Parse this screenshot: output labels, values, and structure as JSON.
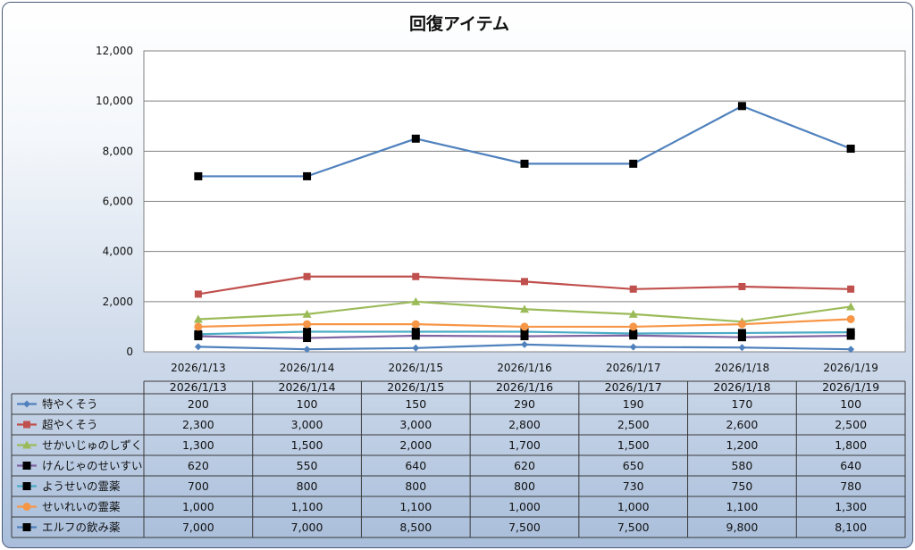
{
  "chart_data": {
    "type": "line",
    "title": "回復アイテム",
    "xlabel": "",
    "ylabel": "",
    "ylim": [
      0,
      12000
    ],
    "ytick_step": 2000,
    "ytick_labels": [
      "0",
      "2,000",
      "4,000",
      "6,000",
      "8,000",
      "10,000",
      "12,000"
    ],
    "grid": true,
    "legend": "data-table-below",
    "categories": [
      "2026/1/13",
      "2026/1/14",
      "2026/1/15",
      "2026/1/16",
      "2026/1/17",
      "2026/1/18",
      "2026/1/19"
    ],
    "series": [
      {
        "name": "特やくそう",
        "color": "#4f81bd",
        "marker": "diamond",
        "values": [
          200,
          100,
          150,
          290,
          190,
          170,
          100
        ],
        "labels": [
          "200",
          "100",
          "150",
          "290",
          "190",
          "170",
          "100"
        ]
      },
      {
        "name": "超やくそう",
        "color": "#c0504d",
        "marker": "square",
        "values": [
          2300,
          3000,
          3000,
          2800,
          2500,
          2600,
          2500
        ],
        "labels": [
          "2,300",
          "3,000",
          "3,000",
          "2,800",
          "2,500",
          "2,600",
          "2,500"
        ]
      },
      {
        "name": "せかいじゅのしずく",
        "color": "#9bbb59",
        "marker": "triangle",
        "values": [
          1300,
          1500,
          2000,
          1700,
          1500,
          1200,
          1800
        ],
        "labels": [
          "1,300",
          "1,500",
          "2,000",
          "1,700",
          "1,500",
          "1,200",
          "1,800"
        ]
      },
      {
        "name": "けんじゃのせいすい",
        "color": "#8064a2",
        "marker": "square-black",
        "values": [
          620,
          550,
          640,
          620,
          650,
          580,
          640
        ],
        "labels": [
          "620",
          "550",
          "640",
          "620",
          "650",
          "580",
          "640"
        ]
      },
      {
        "name": "ようせいの霊薬",
        "color": "#4bacc6",
        "marker": "square-black",
        "values": [
          700,
          800,
          800,
          800,
          730,
          750,
          780
        ],
        "labels": [
          "700",
          "800",
          "800",
          "800",
          "730",
          "750",
          "780"
        ]
      },
      {
        "name": "せいれいの霊薬",
        "color": "#f79646",
        "marker": "circle",
        "values": [
          1000,
          1100,
          1100,
          1000,
          1000,
          1100,
          1300
        ],
        "labels": [
          "1,000",
          "1,100",
          "1,100",
          "1,000",
          "1,000",
          "1,100",
          "1,300"
        ]
      },
      {
        "name": "エルフの飲み薬",
        "color": "#4f81bd",
        "marker": "square-black",
        "values": [
          7000,
          7000,
          8500,
          7500,
          7500,
          9800,
          8100
        ],
        "labels": [
          "7,000",
          "7,000",
          "8,500",
          "7,500",
          "7,500",
          "9,800",
          "8,100"
        ]
      }
    ]
  }
}
